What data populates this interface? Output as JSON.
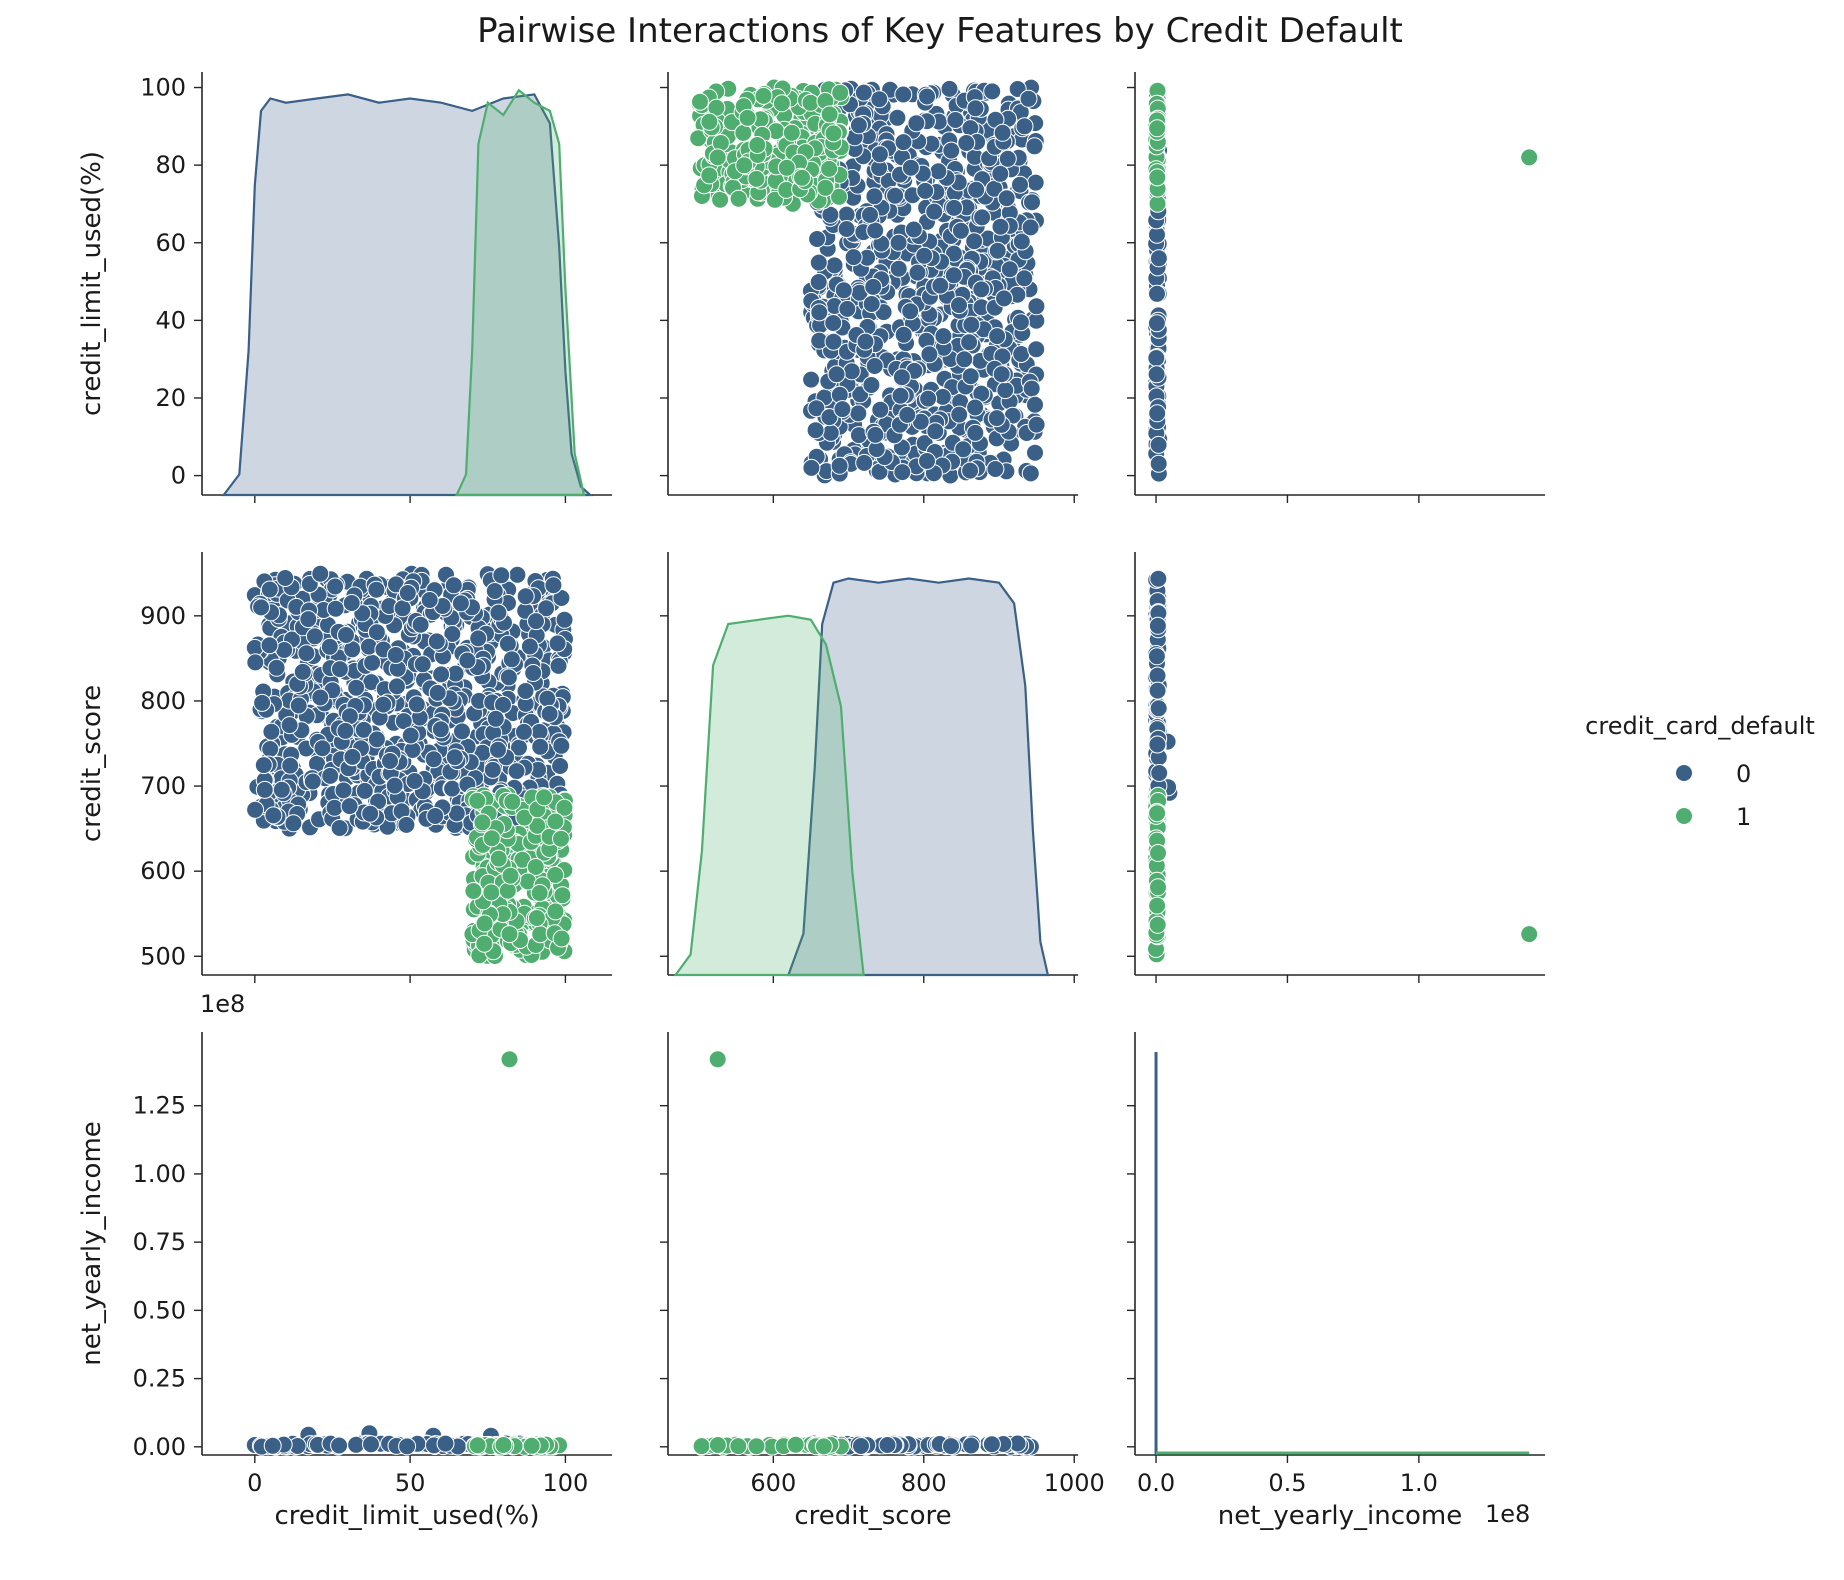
{
  "chart_data": {
    "type": "scatter",
    "title": "Pairwise Interactions of Key Features by Credit Default",
    "variables": [
      {
        "name": "credit_limit_used(%)",
        "lim": [
          -17,
          115
        ],
        "ticks": [
          0,
          50,
          100
        ],
        "tick_labels": [
          "0",
          "50",
          "100"
        ],
        "range": [
          0,
          100
        ]
      },
      {
        "name": "credit_score",
        "lim": [
          460,
          1005
        ],
        "ticks": [
          600,
          800,
          1000
        ],
        "tick_labels": [
          "600",
          "800",
          "1000"
        ],
        "y_ticks": [
          500,
          600,
          700,
          800,
          900
        ],
        "y_tick_labels": [
          "500",
          "600",
          "700",
          "800",
          "900"
        ],
        "range": [
          500,
          950
        ]
      },
      {
        "name": "net_yearly_income",
        "lim": [
          -0.08,
          1.48
        ],
        "scale_label": "1e8",
        "ticks": [
          0.0,
          0.5,
          1.0
        ],
        "tick_labels": [
          "0.0",
          "0.5",
          "1.0"
        ],
        "y_ticks": [
          0.0,
          0.25,
          0.5,
          0.75,
          1.0,
          1.25
        ],
        "y_tick_labels": [
          "0.00",
          "0.25",
          "0.50",
          "0.75",
          "1.00",
          "1.25"
        ]
      }
    ],
    "series": [
      {
        "name": "0",
        "color": "#3b6087",
        "label_color": "#3b6087",
        "clusters": {
          "credit_limit_used(%)": [
            0,
            100
          ],
          "credit_score": [
            650,
            950
          ],
          "net_yearly_income": [
            0.0,
            0.05
          ]
        },
        "kde": {
          "credit_limit_used(%)": {
            "x": [
              -10,
              -5,
              -2,
              0,
              2,
              5,
              10,
              20,
              30,
              40,
              50,
              60,
              70,
              80,
              90,
              95,
              98,
              100,
              102,
              105,
              108
            ],
            "density": [
              0,
              0.05,
              0.35,
              0.75,
              0.93,
              0.96,
              0.95,
              0.96,
              0.97,
              0.95,
              0.96,
              0.95,
              0.93,
              0.96,
              0.97,
              0.9,
              0.6,
              0.3,
              0.1,
              0.02,
              0
            ]
          },
          "credit_score": {
            "x": [
              620,
              640,
              655,
              665,
              680,
              700,
              740,
              780,
              820,
              860,
              900,
              920,
              935,
              945,
              955,
              965
            ],
            "density": [
              0,
              0.1,
              0.5,
              0.85,
              0.95,
              0.96,
              0.95,
              0.96,
              0.95,
              0.96,
              0.95,
              0.9,
              0.7,
              0.35,
              0.08,
              0
            ]
          },
          "net_yearly_income": {
            "x": [
              -0.005,
              0.0,
              0.003,
              0.006,
              0.02
            ],
            "density": [
              0,
              1.0,
              0.3,
              0.02,
              0
            ]
          }
        }
      },
      {
        "name": "1",
        "color": "#4fae6f",
        "label_color": "#4fae6f",
        "clusters": {
          "credit_limit_used(%)": [
            70,
            100
          ],
          "credit_score": [
            500,
            690
          ],
          "net_yearly_income": [
            0.0,
            0.01
          ]
        },
        "outlier": {
          "credit_limit_used(%)": 82,
          "credit_score": 526,
          "net_yearly_income": 1.42
        },
        "kde": {
          "credit_limit_used(%)": {
            "x": [
              65,
              68,
              70,
              72,
              75,
              80,
              85,
              90,
              95,
              98,
              100,
              103,
              106
            ],
            "density": [
              0,
              0.05,
              0.35,
              0.85,
              0.95,
              0.92,
              0.98,
              0.95,
              0.93,
              0.85,
              0.5,
              0.1,
              0
            ]
          },
          "credit_score": {
            "x": [
              470,
              490,
              505,
              520,
              540,
              580,
              620,
              650,
              670,
              690,
              705,
              720
            ],
            "density": [
              0,
              0.05,
              0.3,
              0.75,
              0.85,
              0.86,
              0.87,
              0.86,
              0.8,
              0.65,
              0.25,
              0
            ]
          },
          "net_yearly_income": {
            "x": [
              0.0,
              0.3,
              0.6,
              0.9,
              1.2,
              1.42
            ],
            "density": [
              0.005,
              0.005,
              0.005,
              0.005,
              0.005,
              0.005
            ]
          }
        }
      }
    ],
    "legend": {
      "title": "credit_card_default",
      "entries": [
        "0",
        "1"
      ],
      "position": "right"
    },
    "grid": false
  }
}
